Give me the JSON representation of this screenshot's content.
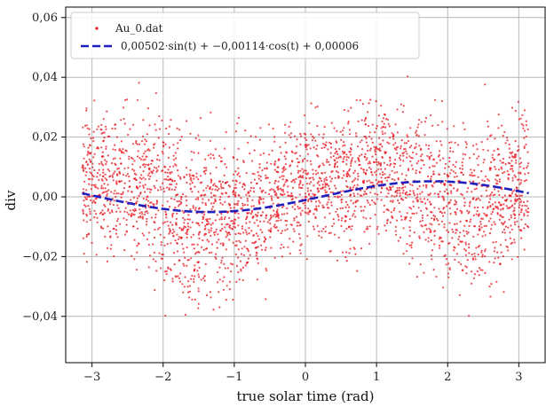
{
  "chart_data": {
    "type": "scatter",
    "xlabel": "true solar time (rad)",
    "ylabel": "div",
    "xlim": [
      -3.37,
      3.37
    ],
    "ylim": [
      -0.0555,
      0.0635
    ],
    "grid": true,
    "legend_position": "top-left",
    "x_ticks": [
      -3,
      -2,
      -1,
      0,
      1,
      2,
      3
    ],
    "x_tick_labels": [
      "−3",
      "−2",
      "−1",
      "0",
      "1",
      "2",
      "3"
    ],
    "y_ticks": [
      -0.04,
      -0.02,
      0.0,
      0.02,
      0.04,
      0.06
    ],
    "y_tick_labels": [
      "−0,04",
      "−0,02",
      "0,00",
      "0,02",
      "0,04",
      "0,06"
    ],
    "series": [
      {
        "name": "Au_0.dat",
        "kind": "scatter",
        "color": "#e8141e",
        "x_range": [
          -3.14,
          3.14
        ],
        "approx_point_count": 3000,
        "envelope": {
          "x": [
            -3.1,
            -2.5,
            -2.0,
            -1.5,
            -1.0,
            -0.5,
            0.0,
            0.5,
            1.0,
            1.5,
            2.0,
            2.5,
            3.1
          ],
          "y_min": [
            -0.025,
            -0.042,
            -0.046,
            -0.043,
            -0.04,
            -0.035,
            -0.028,
            -0.044,
            -0.04,
            -0.035,
            -0.033,
            -0.048,
            -0.035
          ],
          "y_max": [
            0.045,
            0.04,
            0.045,
            0.035,
            0.04,
            0.028,
            0.035,
            0.032,
            0.033,
            0.045,
            0.058,
            0.042,
            0.04
          ],
          "y_center": [
            0.004,
            0.006,
            -0.002,
            -0.008,
            -0.006,
            -0.002,
            0.005,
            0.004,
            0.01,
            0.006,
            -0.002,
            -0.004,
            0.006
          ]
        }
      },
      {
        "name": "0,00502·sin(t) + −0,00114·cos(t) + 0,00006",
        "kind": "line",
        "style": "dashed",
        "color": "#1f1fbf",
        "coefficients": {
          "sin": 0.00502,
          "cos": -0.00114,
          "const": 6e-05
        },
        "x_range": [
          -3.14,
          3.14
        ]
      }
    ]
  }
}
